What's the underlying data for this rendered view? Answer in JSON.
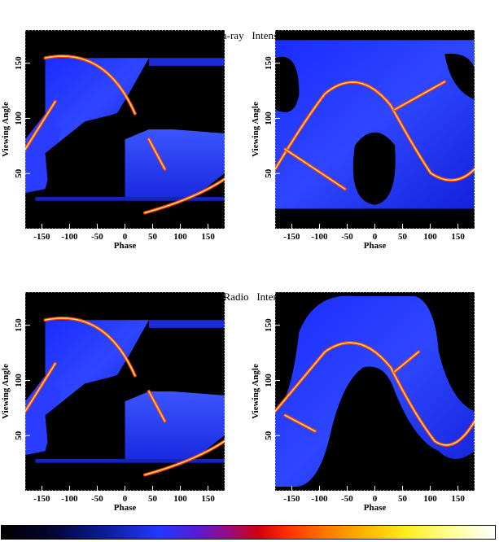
{
  "sections": [
    {
      "title_left": "Gamma-ray",
      "title_right": "Intensity"
    },
    {
      "title_left": "Radio",
      "title_right": "Intensity"
    }
  ],
  "colorbar": {
    "label": ""
  },
  "chart_data": [
    {
      "type": "heatmap",
      "title": "Gamma-ray Intensity",
      "xlabel": "Phase",
      "ylabel": "Viewing Angle",
      "xlim": [
        -180,
        180
      ],
      "ylim": [
        0,
        180
      ],
      "xticks": [
        -150,
        -100,
        -50,
        0,
        50,
        100,
        150
      ],
      "yticks": [
        50,
        100,
        150
      ],
      "grid": false
    },
    {
      "type": "heatmap",
      "title": "Gamma-ray Intensity",
      "xlabel": "Phase",
      "ylabel": "Viewing Angle",
      "xlim": [
        -180,
        180
      ],
      "ylim": [
        0,
        180
      ],
      "xticks": [
        -150,
        -100,
        -50,
        0,
        50,
        100,
        150
      ],
      "yticks": [
        50,
        100,
        150
      ],
      "grid": false
    },
    {
      "type": "heatmap",
      "title": "Radio Intensity",
      "xlabel": "Phase",
      "ylabel": "Viewing Angle",
      "xlim": [
        -180,
        180
      ],
      "ylim": [
        0,
        180
      ],
      "xticks": [
        -150,
        -100,
        -50,
        0,
        50,
        100,
        150
      ],
      "yticks": [
        50,
        100,
        150
      ],
      "grid": false
    },
    {
      "type": "heatmap",
      "title": "Radio Intensity",
      "xlabel": "Phase",
      "ylabel": "Viewing Angle",
      "xlim": [
        -180,
        180
      ],
      "ylim": [
        0,
        180
      ],
      "xticks": [
        -150,
        -100,
        -50,
        0,
        50,
        100,
        150
      ],
      "yticks": [
        50,
        100,
        150
      ],
      "grid": false
    }
  ]
}
